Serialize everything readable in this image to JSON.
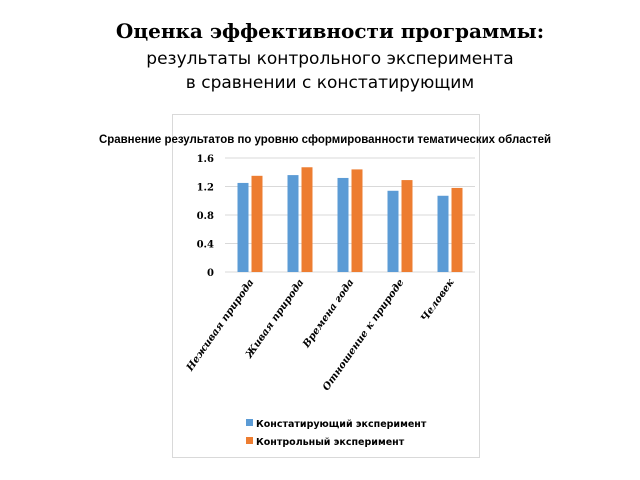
{
  "slide": {
    "title": "Оценка эффективности программы:",
    "subtitle_line1": "результаты контрольного эксперимента",
    "subtitle_line2": "в сравнении с констатирующим"
  },
  "colors": {
    "series1": "#5b9bd5",
    "series2": "#ed7d31",
    "grid": "#d9d9d9"
  },
  "chart_data": {
    "type": "bar",
    "title": "Сравнение результатов по уровню сформированности тематических областей",
    "categories": [
      "Неживая природа",
      "Живая природа",
      "Времена года",
      "Отношение к природе",
      "Человек"
    ],
    "series": [
      {
        "name": "Констатирующий эксперимент",
        "values": [
          1.25,
          1.36,
          1.32,
          1.14,
          1.07
        ]
      },
      {
        "name": "Контрольный эксперимент",
        "values": [
          1.35,
          1.47,
          1.44,
          1.29,
          1.18
        ]
      }
    ],
    "yticks": [
      "0",
      "0.4",
      "0.8",
      "1.2",
      "1.6"
    ],
    "ylim": [
      0,
      1.6
    ],
    "grid": true,
    "legend_position": "bottom"
  }
}
